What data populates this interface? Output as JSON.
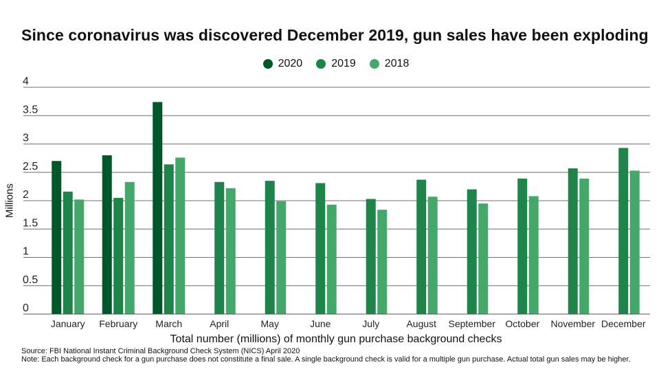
{
  "chart_data": {
    "type": "bar",
    "title": "Since coronavirus was discovered December 2019, gun sales have been exploding",
    "xlabel": "Total number (millions) of monthly gun purchase background checks",
    "ylabel": "Millions",
    "ylim": [
      0,
      4
    ],
    "yticks": [
      "0",
      "0.5",
      "1",
      "1.5",
      "2",
      "2.5",
      "3",
      "3.5",
      "4"
    ],
    "grid": true,
    "legend_position": "top-center",
    "categories": [
      "January",
      "February",
      "March",
      "April",
      "May",
      "June",
      "July",
      "August",
      "September",
      "October",
      "November",
      "December"
    ],
    "series": [
      {
        "name": "2020",
        "color": "#00572a",
        "values": [
          2.7,
          2.8,
          3.74,
          null,
          null,
          null,
          null,
          null,
          null,
          null,
          null,
          null
        ]
      },
      {
        "name": "2019",
        "color": "#1e8449",
        "values": [
          2.16,
          2.05,
          2.64,
          2.33,
          2.35,
          2.31,
          2.03,
          2.37,
          2.2,
          2.39,
          2.57,
          2.93
        ]
      },
      {
        "name": "2018",
        "color": "#45a86b",
        "values": [
          2.02,
          2.33,
          2.76,
          2.22,
          1.99,
          1.93,
          1.84,
          2.07,
          1.95,
          2.08,
          2.39,
          2.53
        ]
      }
    ]
  },
  "footer": {
    "source": "Source: FBI National Instant Criminal Background Check System (NICS) April 2020",
    "note": "Note: Each background check for a gun purchase does not constitute a final sale. A single background check is valid for a multiple gun purchase. Actual total gun sales may be higher."
  }
}
